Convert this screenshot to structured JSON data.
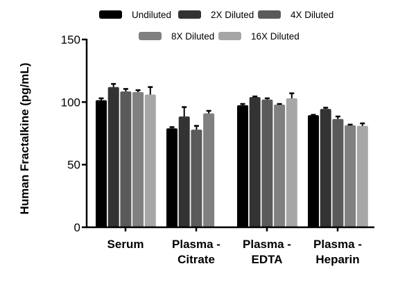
{
  "chart_data": {
    "type": "bar",
    "title": "",
    "xlabel": "",
    "ylabel": "Human Fractalkine (pg/mL)",
    "ylim": [
      0,
      150
    ],
    "yticks": [
      0,
      50,
      100,
      150
    ],
    "grid": false,
    "legend_position": "top",
    "categories": [
      [
        "Serum"
      ],
      [
        "Plasma -",
        "Citrate"
      ],
      [
        "Plasma -",
        "EDTA"
      ],
      [
        "Plasma -",
        "Heparin"
      ]
    ],
    "series": [
      {
        "name": "Undiluted",
        "color": "#000000",
        "values": [
          101.5,
          79,
          97.5,
          89.5
        ],
        "errors": [
          1.5,
          1,
          1,
          0.3
        ]
      },
      {
        "name": "2X Diluted",
        "color": "#333333",
        "values": [
          112,
          88.5,
          104,
          94.5
        ],
        "errors": [
          2.5,
          7.5,
          0.5,
          1
        ]
      },
      {
        "name": "4X Diluted",
        "color": "#5a5a5a",
        "values": [
          108.5,
          78,
          102,
          86.5
        ],
        "errors": [
          2,
          3,
          1,
          2
        ]
      },
      {
        "name": "8X Diluted",
        "color": "#808080",
        "values": [
          108,
          91,
          98,
          81.5
        ],
        "errors": [
          1.5,
          2,
          0.5,
          0.5
        ]
      },
      {
        "name": "16X Diluted",
        "color": "#a6a6a6",
        "values": [
          106,
          null,
          103,
          81
        ],
        "errors": [
          6,
          null,
          4,
          2
        ]
      }
    ]
  }
}
